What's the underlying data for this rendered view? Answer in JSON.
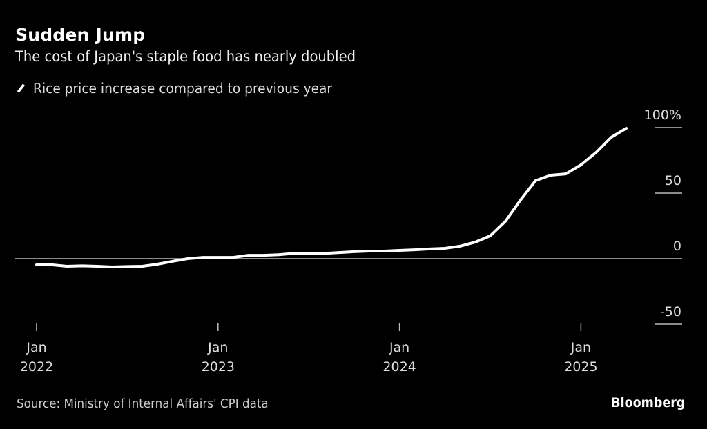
{
  "header": {
    "title": "Sudden Jump",
    "subtitle": "The cost of Japan's staple food has nearly doubled"
  },
  "legend": [
    {
      "label": "Rice price increase compared to previous year",
      "color": "#ffffff"
    }
  ],
  "footer": {
    "source": "Source: Ministry of Internal Affairs' CPI data",
    "brand": "Bloomberg"
  },
  "chart_data": {
    "type": "line",
    "title": "Sudden Jump",
    "subtitle": "The cost of Japan's staple food has nearly doubled",
    "xlabel": "",
    "ylabel": "",
    "ylim": [
      -50,
      100
    ],
    "yticks": [
      100,
      50,
      0,
      -50
    ],
    "ytick_labels": [
      "100%",
      "50",
      "0",
      "-50"
    ],
    "xticks": [
      {
        "month_index": 0,
        "line1": "Jan",
        "line2": "2022"
      },
      {
        "month_index": 12,
        "line1": "Jan",
        "line2": "2023"
      },
      {
        "month_index": 24,
        "line1": "Jan",
        "line2": "2024"
      },
      {
        "month_index": 36,
        "line1": "Jan",
        "line2": "2025"
      }
    ],
    "grid": false,
    "zero_line": true,
    "legend_position": "top-left",
    "series": [
      {
        "name": "Rice price increase compared to previous year",
        "color": "#ffffff",
        "x": [
          "2022-01",
          "2022-02",
          "2022-03",
          "2022-04",
          "2022-05",
          "2022-06",
          "2022-07",
          "2022-08",
          "2022-09",
          "2022-10",
          "2022-11",
          "2022-12",
          "2023-01",
          "2023-02",
          "2023-03",
          "2023-04",
          "2023-05",
          "2023-06",
          "2023-07",
          "2023-08",
          "2023-09",
          "2023-10",
          "2023-11",
          "2023-12",
          "2024-01",
          "2024-02",
          "2024-03",
          "2024-04",
          "2024-05",
          "2024-06",
          "2024-07",
          "2024-08",
          "2024-09",
          "2024-10",
          "2024-11",
          "2024-12",
          "2025-01",
          "2025-02",
          "2025-03",
          "2025-04"
        ],
        "values": [
          -4.7,
          -4.7,
          -5.8,
          -5.5,
          -5.8,
          -6.3,
          -6.0,
          -5.8,
          -4.2,
          -2.0,
          0.0,
          1.0,
          1.0,
          1.0,
          2.6,
          2.6,
          3.0,
          4.0,
          3.7,
          4.0,
          4.7,
          5.3,
          5.8,
          5.8,
          6.3,
          6.8,
          7.4,
          7.9,
          9.5,
          12.6,
          17.4,
          28.4,
          44.7,
          59.5,
          63.7,
          64.7,
          71.6,
          81.0,
          92.6,
          99.5
        ]
      }
    ]
  }
}
